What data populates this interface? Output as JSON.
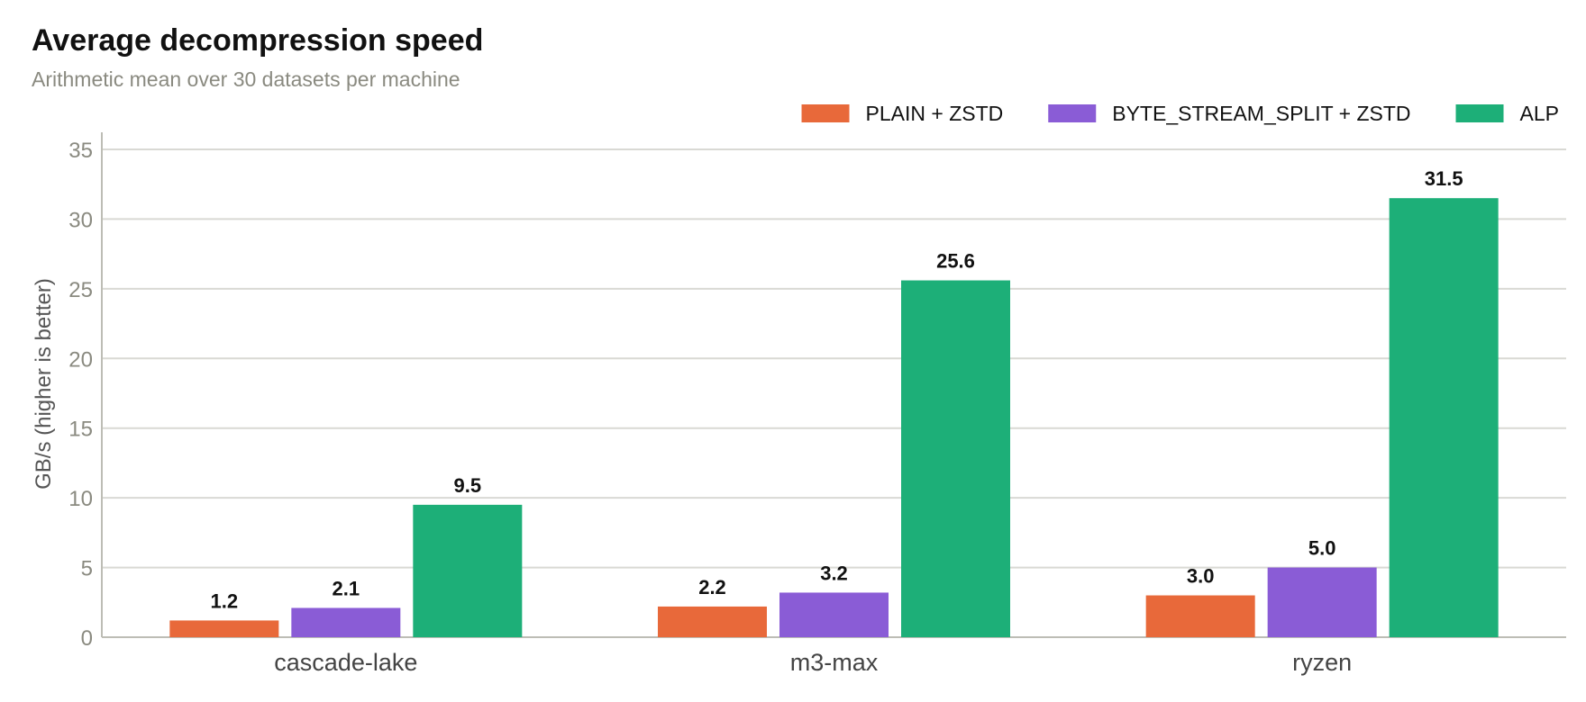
{
  "title": "Average decompression speed",
  "subtitle": "Arithmetic mean over 30 datasets per machine",
  "colors": {
    "grid": "#d9d9d4",
    "axis": "#bdbdb5"
  },
  "chart_data": {
    "type": "bar",
    "title": "Average decompression speed",
    "subtitle": "Arithmetic mean over 30 datasets per machine",
    "xlabel": "",
    "ylabel": "GB/s (higher is better)",
    "ylim": [
      0,
      37
    ],
    "yticks": [
      0,
      5,
      10,
      15,
      20,
      25,
      30,
      35
    ],
    "grid": true,
    "legend_position": "top-right",
    "categories": [
      "cascade-lake",
      "m3-max",
      "ryzen"
    ],
    "series": [
      {
        "name": "PLAIN + ZSTD",
        "color": "#e8693a",
        "values": [
          1.2,
          2.2,
          3.0
        ],
        "labels": [
          "1.2",
          "2.2",
          "3.0"
        ]
      },
      {
        "name": "BYTE_STREAM_SPLIT + ZSTD",
        "color": "#8a5cd6",
        "values": [
          2.1,
          3.2,
          5.0
        ],
        "labels": [
          "2.1",
          "3.2",
          "5.0"
        ]
      },
      {
        "name": "ALP",
        "color": "#1daf78",
        "values": [
          9.5,
          25.6,
          31.5
        ],
        "labels": [
          "9.5",
          "25.6",
          "31.5"
        ]
      }
    ]
  }
}
